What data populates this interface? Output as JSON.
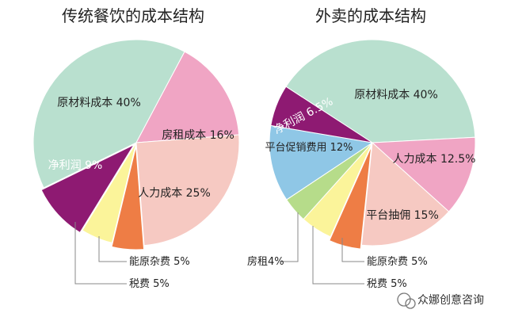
{
  "chart_data": [
    {
      "type": "pie",
      "title": "传统餐饮的成本结构",
      "slices": [
        {
          "label": "原材料成本 40%",
          "value": 40,
          "color": "#b9e0cf"
        },
        {
          "label": "房租成本 16%",
          "value": 16,
          "color": "#f0a5c4"
        },
        {
          "label": "人力成本 25%",
          "value": 25,
          "color": "#f6c9c2"
        },
        {
          "label": "能原杂费 5%",
          "value": 5,
          "color": "#ee7d45"
        },
        {
          "label": "税费 5%",
          "value": 5,
          "color": "#fbf49a"
        },
        {
          "label": "净利润 9%",
          "value": 9,
          "color": "#8e1a72"
        }
      ]
    },
    {
      "type": "pie",
      "title": "外卖的成本结构",
      "slices": [
        {
          "label": "原材料成本 40%",
          "value": 40,
          "color": "#b9e0cf"
        },
        {
          "label": "人力成本 12.5%",
          "value": 12.5,
          "color": "#f0a5c4"
        },
        {
          "label": "平台抽佣 15%",
          "value": 15,
          "color": "#f6c9c2"
        },
        {
          "label": "能原杂费 5%",
          "value": 5,
          "color": "#ee7d45"
        },
        {
          "label": "税费 5%",
          "value": 5,
          "color": "#fbf49a"
        },
        {
          "label": "房租4%",
          "value": 4,
          "color": "#b6dc8a"
        },
        {
          "label": "平台促销费用 12%",
          "value": 12,
          "color": "#8fc7e6"
        },
        {
          "label": "净利润 6.5%",
          "value": 6.5,
          "color": "#8e1a72"
        }
      ]
    }
  ],
  "watermark": "众娜创意咨询"
}
